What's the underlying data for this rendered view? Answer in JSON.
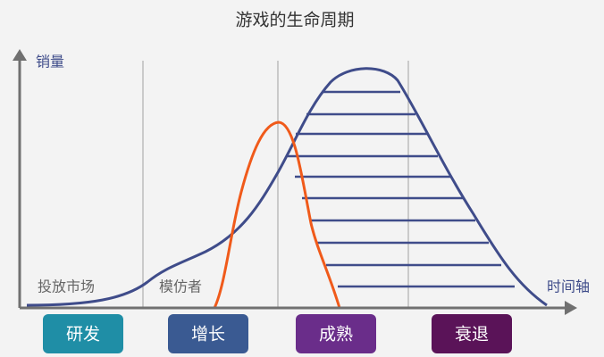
{
  "header": {
    "title": "游戏的生命周期"
  },
  "axes": {
    "y_label": "销量",
    "x_label": "时间轴"
  },
  "regions": [
    "投放市场",
    "模仿者"
  ],
  "stages": [
    "研发",
    "增长",
    "成熟",
    "衰退"
  ]
}
